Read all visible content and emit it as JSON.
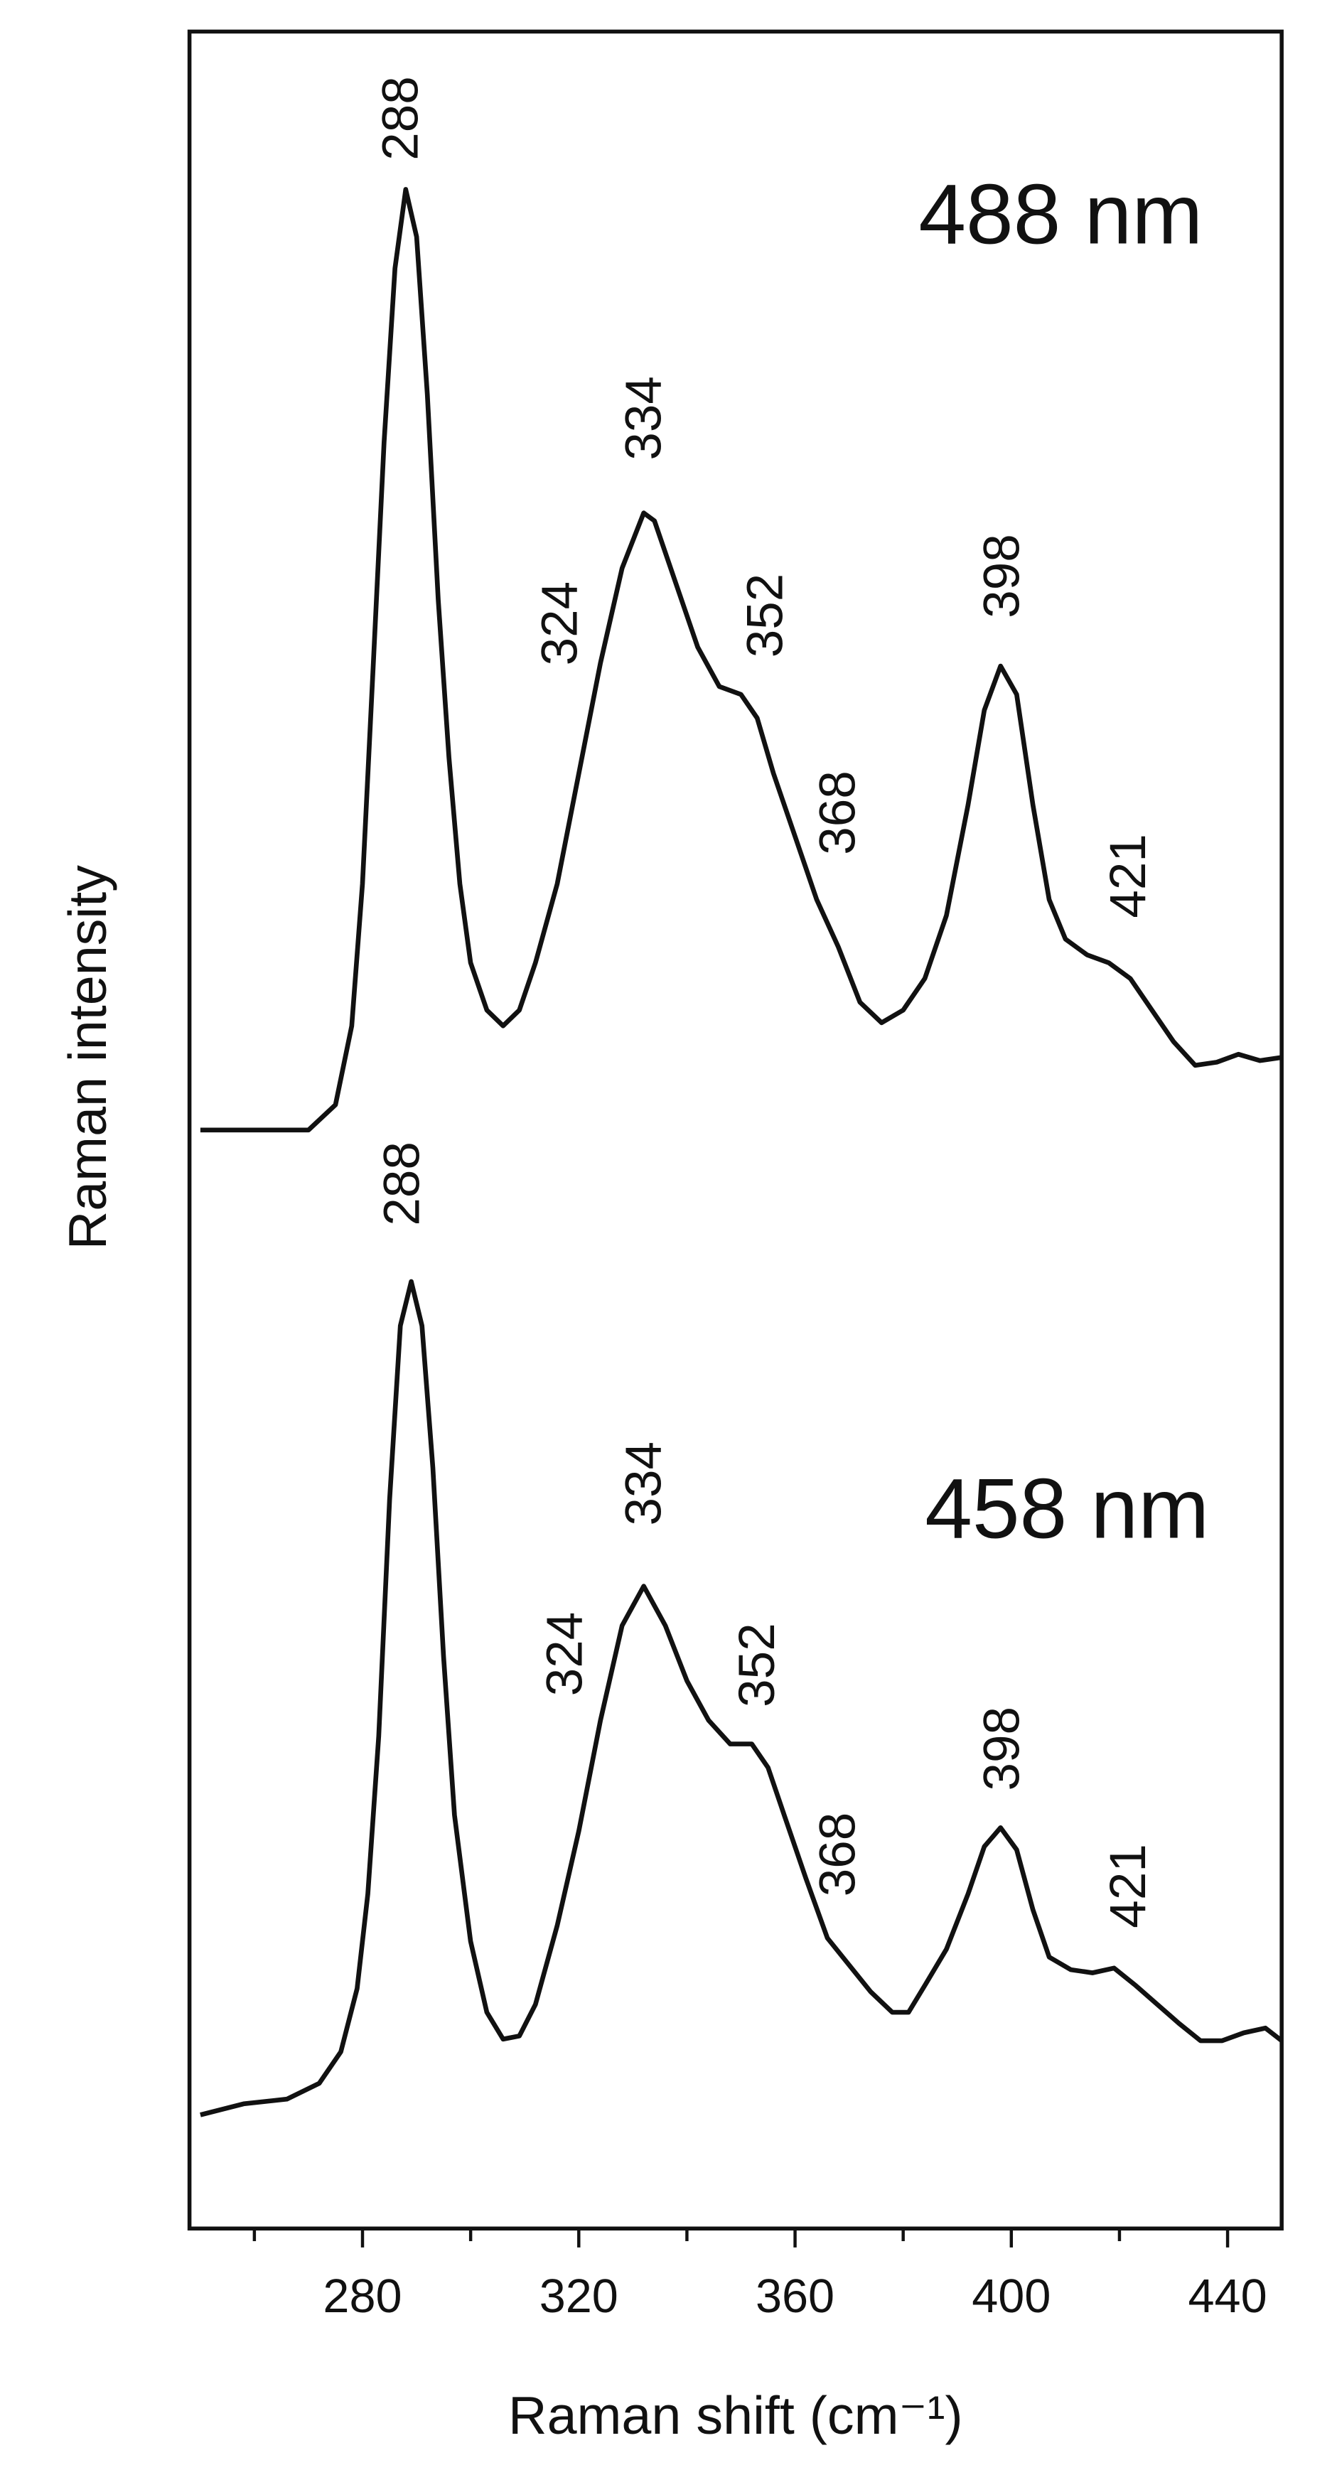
{
  "chart_data": {
    "type": "line",
    "xlabel": "Raman shift (cm⁻¹)",
    "ylabel": "Raman intensity",
    "xlim": [
      248,
      450
    ],
    "xticks": [
      280,
      320,
      360,
      400,
      440
    ],
    "xminor_ticks": [
      260,
      300,
      340,
      380,
      420
    ],
    "ylim": [
      0,
      1392
    ],
    "color": "#111111",
    "series": [
      {
        "name": "488 nm",
        "x": [
          250,
          270,
          275,
          278,
          280,
          282,
          284,
          286,
          288,
          290,
          292,
          294,
          296,
          298,
          300,
          303,
          306,
          309,
          312,
          316,
          320,
          324,
          328,
          332,
          334,
          338,
          342,
          346,
          350,
          353,
          356,
          360,
          364,
          368,
          372,
          376,
          380,
          384,
          388,
          392,
          395,
          398,
          401,
          404,
          407,
          410,
          414,
          418,
          422,
          426,
          430,
          434,
          438,
          442,
          446,
          450
        ],
        "values": [
          696,
          696,
          712,
          762,
          852,
          992,
          1132,
          1242,
          1292,
          1262,
          1162,
          1032,
          932,
          852,
          802,
          772,
          762,
          772,
          802,
          852,
          922,
          992,
          1052,
          1087,
          1082,
          1042,
          1002,
          977,
          972,
          957,
          922,
          882,
          842,
          812,
          777,
          764,
          772,
          792,
          832,
          902,
          962,
          990,
          972,
          902,
          842,
          817,
          807,
          802,
          792,
          772,
          752,
          737,
          739,
          744,
          740,
          742
        ],
        "annotations": [
          "288",
          "334",
          "324",
          "352",
          "368",
          "398",
          "421"
        ]
      },
      {
        "name": "458 nm",
        "x": [
          250,
          258,
          266,
          272,
          276,
          279,
          281,
          283,
          285,
          287,
          289,
          291,
          293,
          295,
          297,
          300,
          303,
          306,
          309,
          312,
          316,
          320,
          324,
          328,
          332,
          336,
          340,
          344,
          348,
          352,
          355,
          358,
          362,
          366,
          370,
          374,
          378,
          381,
          384,
          388,
          392,
          395,
          398,
          401,
          404,
          407,
          411,
          415,
          419,
          423,
          427,
          431,
          435,
          439,
          443,
          447,
          450
        ],
        "values": [
          72,
          79,
          82,
          92,
          112,
          152,
          212,
          312,
          462,
          572,
          600,
          572,
          482,
          362,
          262,
          182,
          137,
          120,
          122,
          142,
          192,
          252,
          322,
          382,
          407,
          382,
          347,
          322,
          307,
          307,
          292,
          262,
          222,
          184,
          167,
          150,
          137,
          137,
          154,
          177,
          212,
          242,
          254,
          240,
          202,
          172,
          164,
          162,
          165,
          154,
          142,
          130,
          119,
          119,
          124,
          127,
          119
        ],
        "annotations": [
          "288",
          "334",
          "324",
          "352",
          "368",
          "398",
          "421"
        ]
      }
    ]
  }
}
